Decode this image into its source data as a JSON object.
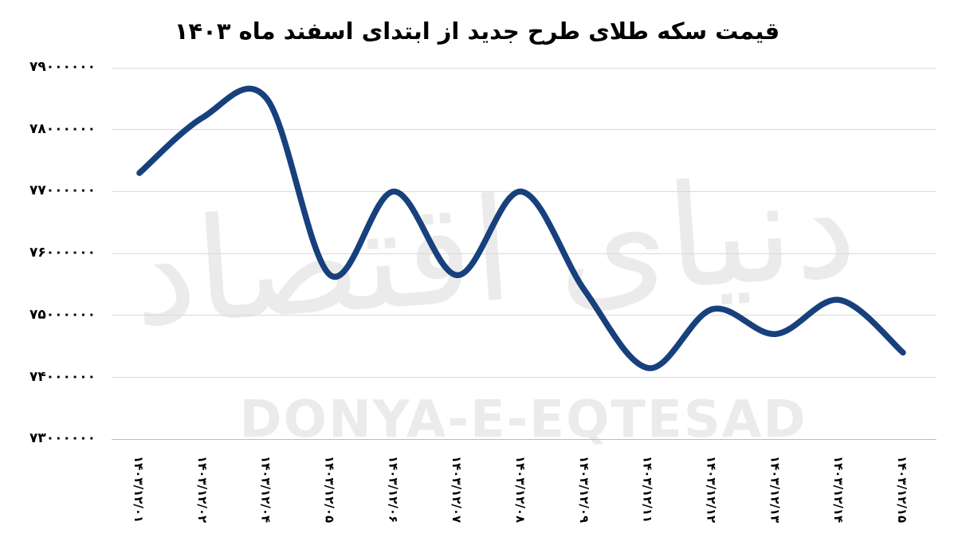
{
  "title": {
    "text": "قیمت سکه طلای طرح جدید از ابتدای اسفند ماه ۱۴۰۳"
  },
  "watermark": {
    "persian": "دنیای اقتصاد",
    "latin": "DONYA-E-EQTESAD",
    "color": "#EBEBEB"
  },
  "chart_data": {
    "type": "line",
    "title": "قیمت سکه طلای طرح جدید از ابتدای اسفند ماه ۱۴۰۳",
    "xlabel": "",
    "ylabel": "",
    "legend_position": "none",
    "grid": true,
    "smoothed": true,
    "ylim": [
      73000000,
      79000000
    ],
    "x_dates": [
      "1403/12/01",
      "1403/12/02",
      "1403/12/04",
      "1403/12/05",
      "1403/12/06",
      "1403/12/07",
      "1403/12/08",
      "1403/12/09",
      "1403/12/11",
      "1403/12/12",
      "1403/12/13",
      "1403/12/14",
      "1403/12/15"
    ],
    "x_labels": [
      "۱۴۰۳/۱۲/۰۱",
      "۱۴۰۳/۱۲/۰۲",
      "۱۴۰۳/۱۲/۰۴",
      "۱۴۰۳/۱۲/۰۵",
      "۱۴۰۳/۱۲/۰۶",
      "۱۴۰۳/۱۲/۰۷",
      "۱۴۰۳/۱۲/۰۸",
      "۱۴۰۳/۱۲/۰۹",
      "۱۴۰۳/۱۲/۱۱",
      "۱۴۰۳/۱۲/۱۲",
      "۱۴۰۳/۱۲/۱۳",
      "۱۴۰۳/۱۲/۱۴",
      "۱۴۰۳/۱۲/۱۵"
    ],
    "values": [
      77300000,
      78200000,
      78500000,
      75650000,
      77000000,
      75650000,
      77000000,
      75400000,
      74150000,
      75100000,
      74700000,
      75250000,
      74400000
    ],
    "y_tick_values": [
      79000000,
      78000000,
      77000000,
      76000000,
      75000000,
      74000000,
      73000000
    ],
    "y_tick_labels": [
      "۷۹۰۰۰۰۰۰",
      "۷۸۰۰۰۰۰۰",
      "۷۷۰۰۰۰۰۰",
      "۷۶۰۰۰۰۰۰",
      "۷۵۰۰۰۰۰۰",
      "۷۴۰۰۰۰۰۰",
      "۷۳۰۰۰۰۰۰"
    ],
    "line_color": "#17407D",
    "grid_color": "#D9D9D9",
    "grid_color_bottom": "#BDBDBD",
    "label_color": "#000000"
  }
}
